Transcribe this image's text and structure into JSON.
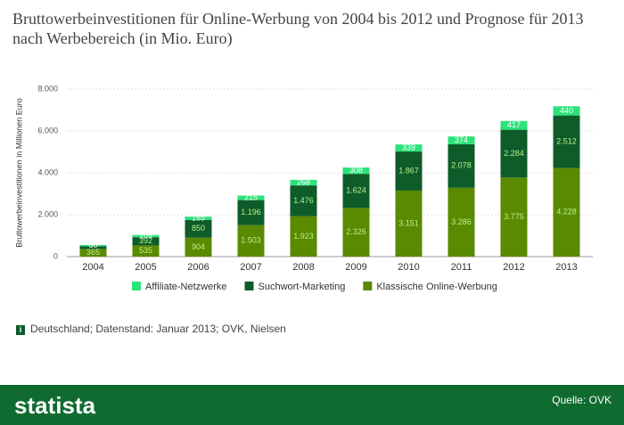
{
  "chart_data": {
    "type": "stacked-bar",
    "title": "Bruttowerbeinvestitionen für Online-Werbung von 2004 bis 2012 und Prognose für 2013 nach Werbebereich (in Mio. Euro)",
    "y_label": "Bruttowerbeinvestitionen in Millionen Euro",
    "categories": [
      "2004",
      "2005",
      "2006",
      "2007",
      "2008",
      "2009",
      "2010",
      "2011",
      "2012",
      "2013"
    ],
    "series": [
      {
        "name": "Klassische Online-Werbung",
        "color": "#5a8a00",
        "values": [
          365,
          535,
          904,
          1503,
          1923,
          2326,
          3151,
          3286,
          3775,
          4228
        ],
        "value_labels": [
          "365",
          "535",
          "904",
          "1.503",
          "1.923",
          "2.326",
          "3.151",
          "3.286",
          "3.775",
          "4.228"
        ]
      },
      {
        "name": "Suchwort-Marketing",
        "color": "#0d5c2a",
        "values": [
          130,
          392,
          850,
          1196,
          1476,
          1624,
          1867,
          2078,
          2284,
          2512
        ],
        "value_labels": [
          null,
          "392",
          "850",
          "1.196",
          "1.476",
          "1.624",
          "1.867",
          "2.078",
          "2.284",
          "2.512"
        ]
      },
      {
        "name": "Affiliate-Netzwerke",
        "color": "#2be37a",
        "values": [
          60,
          105,
          155,
          215,
          268,
          308,
          339,
          374,
          417,
          440
        ]
      }
    ],
    "ylim": [
      0,
      8000
    ],
    "yticks": [
      0,
      {
        "value": 2000,
        "label": "2.000"
      },
      {
        "value": 4000,
        "label": "4.000"
      },
      {
        "value": 6000,
        "label": "6.000"
      },
      {
        "value": 8000,
        "label": "8.000"
      }
    ],
    "grid": true,
    "legend": "bottom"
  },
  "note": "Deutschland; Datenstand: Januar 2013; OVK, Nielsen",
  "footer": {
    "logo": "statista",
    "source": "Quelle: OVK"
  }
}
